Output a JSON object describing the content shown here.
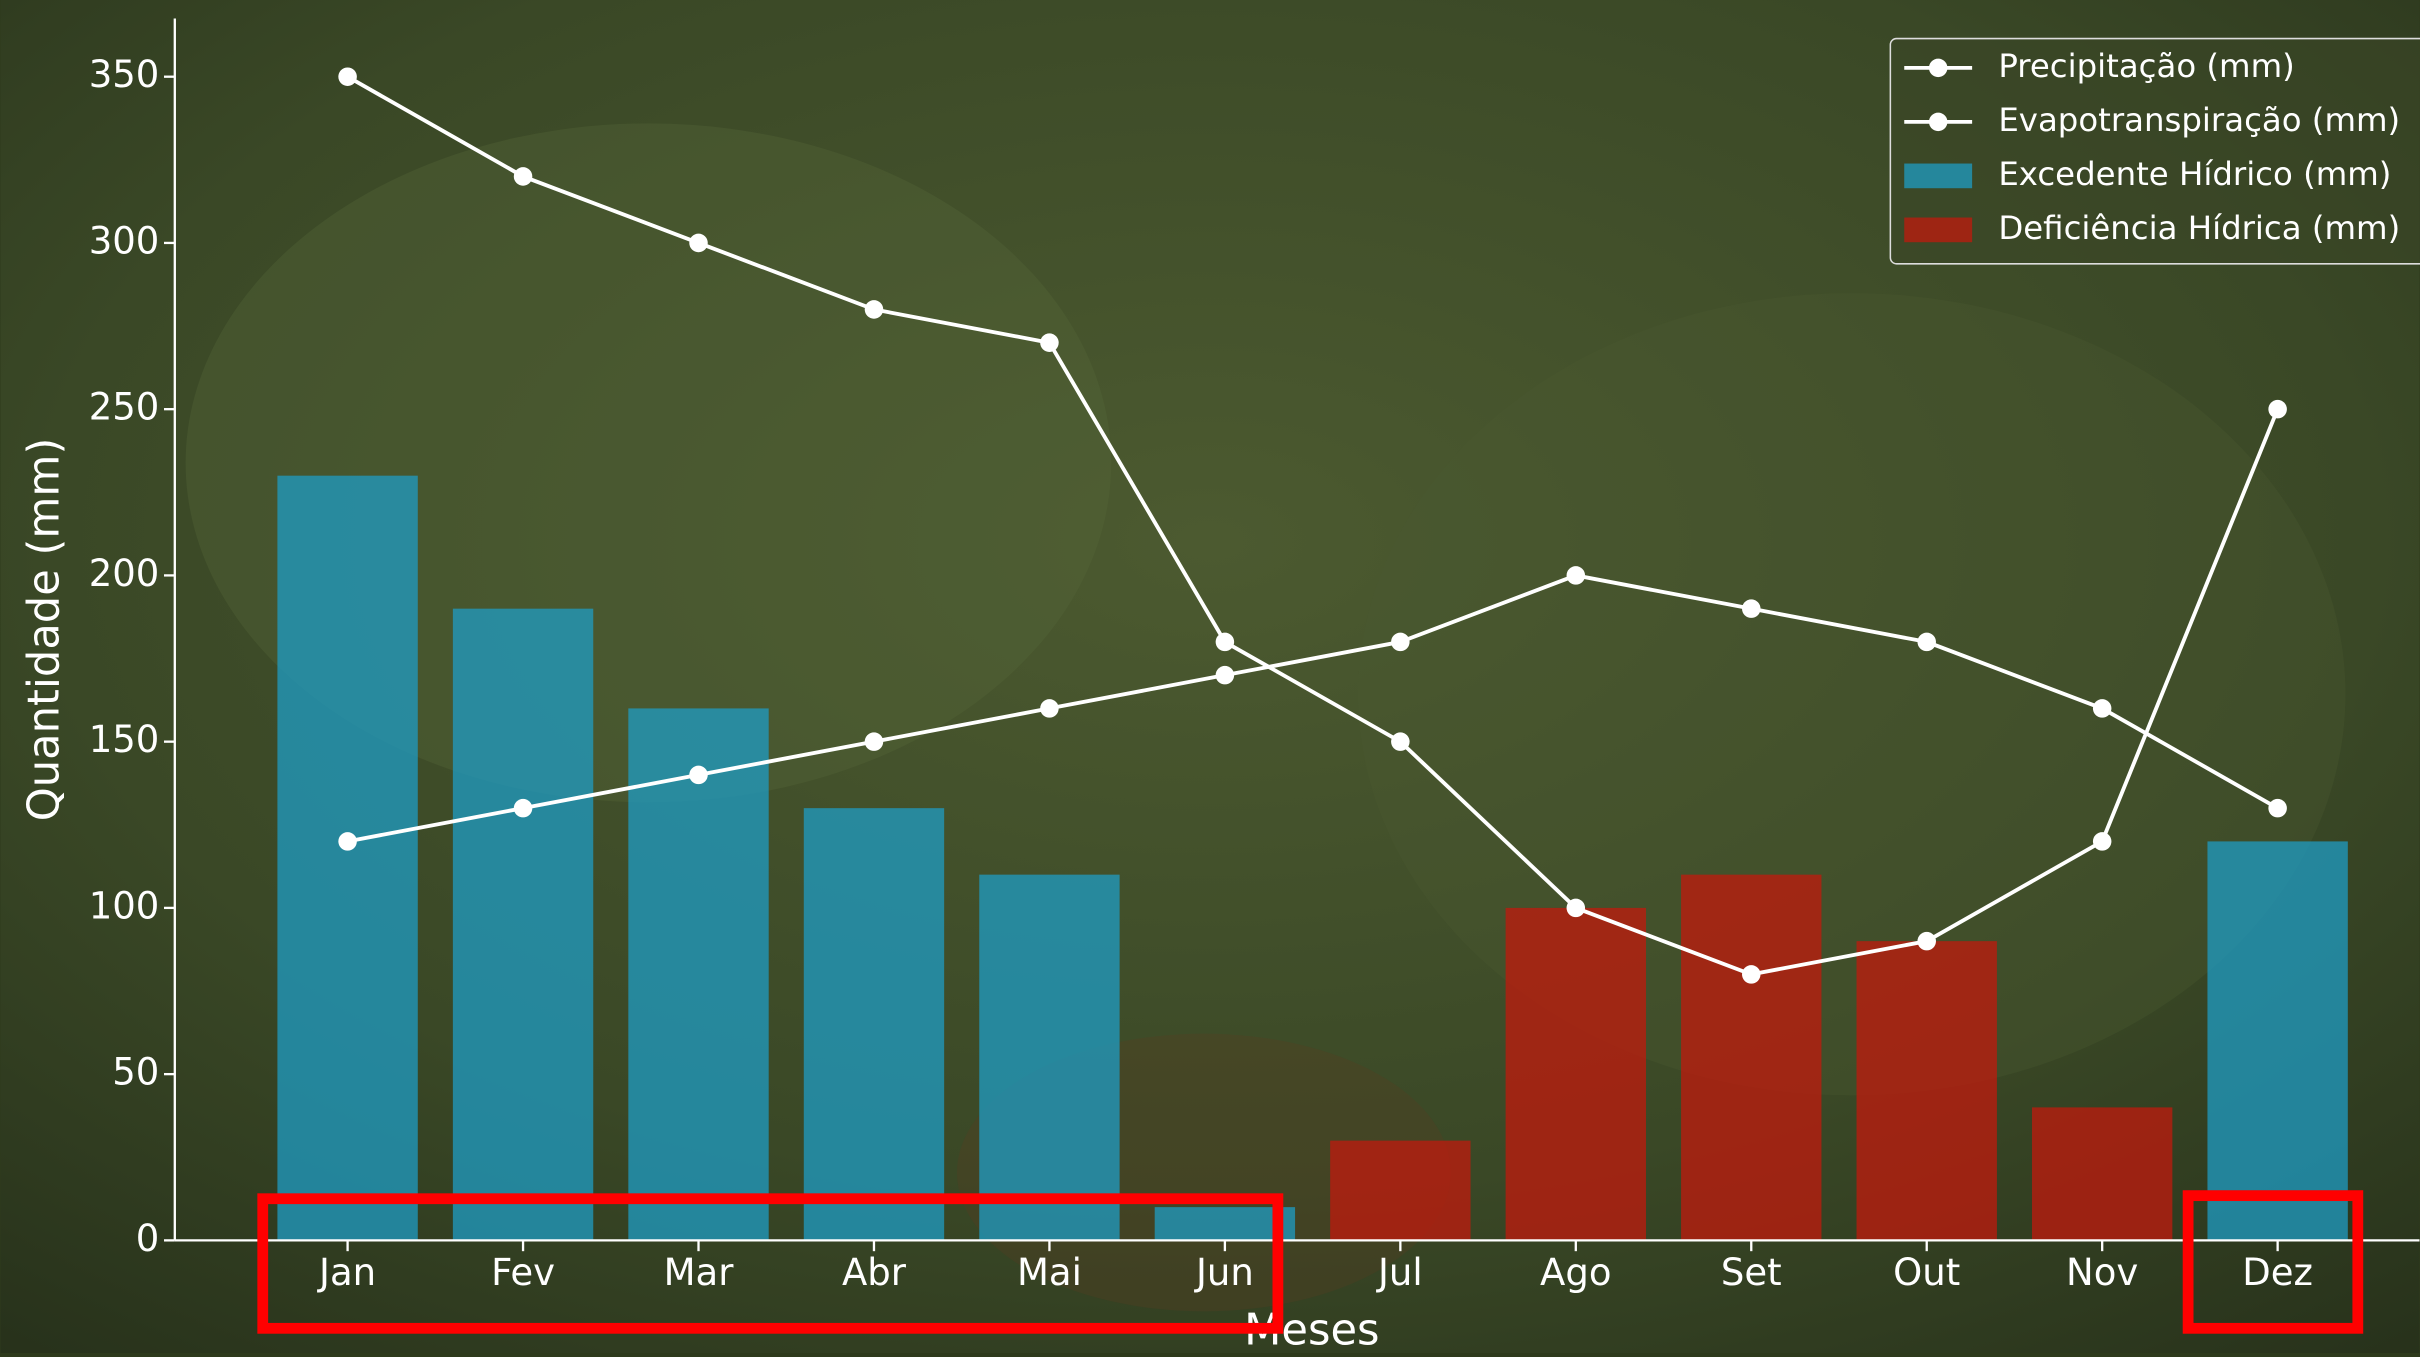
{
  "chart_data": {
    "type": "bar-line",
    "xlabel": "Meses",
    "ylabel": "Quantidade (mm)",
    "categories": [
      "Jan",
      "Fev",
      "Mar",
      "Abr",
      "Mai",
      "Jun",
      "Jul",
      "Ago",
      "Set",
      "Out",
      "Nov",
      "Dez"
    ],
    "series": [
      {
        "name": "Precipitação (mm)",
        "type": "line",
        "color": "#ffffff",
        "values": [
          350,
          320,
          300,
          280,
          270,
          180,
          150,
          100,
          80,
          90,
          120,
          250
        ]
      },
      {
        "name": "Evapotranspiração (mm)",
        "type": "line",
        "color": "#ffffff",
        "values": [
          120,
          130,
          140,
          150,
          160,
          170,
          180,
          200,
          190,
          180,
          160,
          130
        ]
      },
      {
        "name": "Excedente Hídrico (mm)",
        "type": "bar",
        "color": "#1f9cc4",
        "values": [
          230,
          190,
          160,
          130,
          110,
          10,
          0,
          0,
          0,
          0,
          0,
          120
        ]
      },
      {
        "name": "Deficiência Hídrica (mm)",
        "type": "bar",
        "color": "#c01a0e",
        "values": [
          0,
          0,
          0,
          0,
          0,
          0,
          30,
          100,
          110,
          90,
          40,
          0
        ]
      }
    ],
    "ylim": [
      0,
      367.5
    ],
    "yticks": [
      0,
      50,
      100,
      150,
      200,
      250,
      300,
      350
    ],
    "legend": "upper right"
  }
}
